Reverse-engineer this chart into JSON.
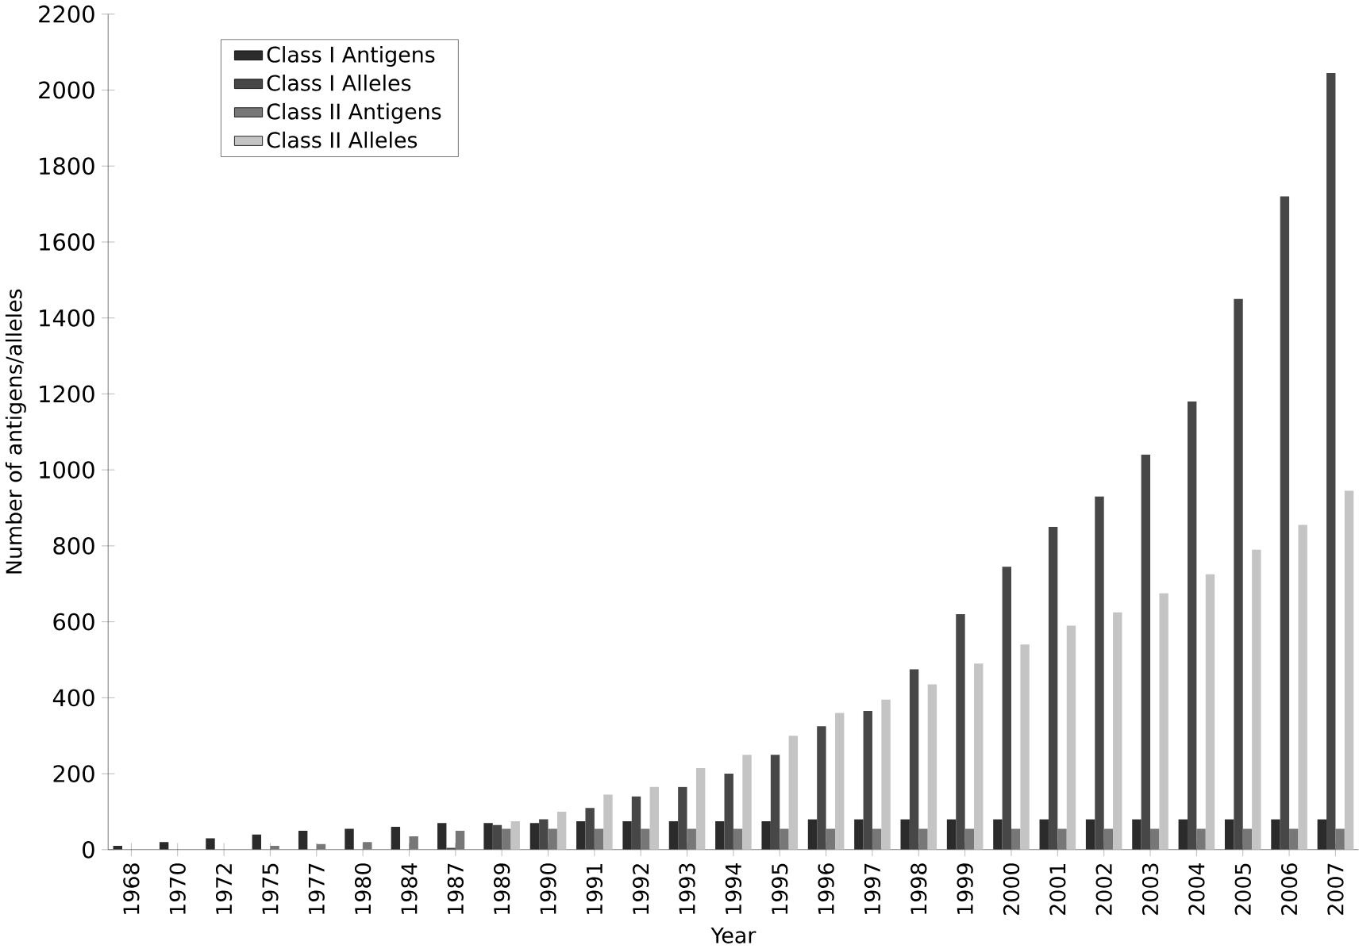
{
  "chart_data": {
    "type": "bar",
    "xlabel": "Year",
    "ylabel": "Number of antigens/alleles",
    "categories": [
      "1968",
      "1970",
      "1972",
      "1975",
      "1977",
      "1980",
      "1984",
      "1987",
      "1989",
      "1990",
      "1991",
      "1992",
      "1993",
      "1994",
      "1995",
      "1996",
      "1997",
      "1998",
      "1999",
      "2000",
      "2001",
      "2002",
      "2003",
      "2004",
      "2005",
      "2006",
      "2007"
    ],
    "series": [
      {
        "name": "Class I Antigens",
        "color": "#2b2b2b",
        "values": [
          10,
          20,
          30,
          40,
          50,
          55,
          60,
          70,
          70,
          70,
          75,
          75,
          75,
          75,
          75,
          80,
          80,
          80,
          80,
          80,
          80,
          80,
          80,
          80,
          80,
          80,
          80
        ]
      },
      {
        "name": "Class I Alleles",
        "color": "#474747",
        "values": [
          null,
          null,
          null,
          null,
          null,
          null,
          null,
          5,
          65,
          80,
          110,
          140,
          165,
          200,
          250,
          325,
          365,
          475,
          620,
          745,
          850,
          930,
          1040,
          1180,
          1450,
          1720,
          2045
        ]
      },
      {
        "name": "Class II Antigens",
        "color": "#777777",
        "values": [
          null,
          null,
          null,
          10,
          15,
          20,
          35,
          50,
          55,
          55,
          55,
          55,
          55,
          55,
          55,
          55,
          55,
          55,
          55,
          55,
          55,
          55,
          55,
          55,
          55,
          55,
          55
        ]
      },
      {
        "name": "Class II Alleles",
        "color": "#c4c4c4",
        "values": [
          null,
          null,
          null,
          null,
          null,
          null,
          null,
          null,
          75,
          100,
          145,
          165,
          215,
          250,
          300,
          360,
          395,
          435,
          490,
          540,
          590,
          625,
          675,
          725,
          790,
          855,
          945
        ]
      }
    ],
    "ylim": [
      0,
      2200
    ],
    "yticks": [
      0,
      200,
      400,
      600,
      800,
      1000,
      1200,
      1400,
      1600,
      1800,
      2000,
      2200
    ],
    "legend": "top left",
    "grid": false
  }
}
